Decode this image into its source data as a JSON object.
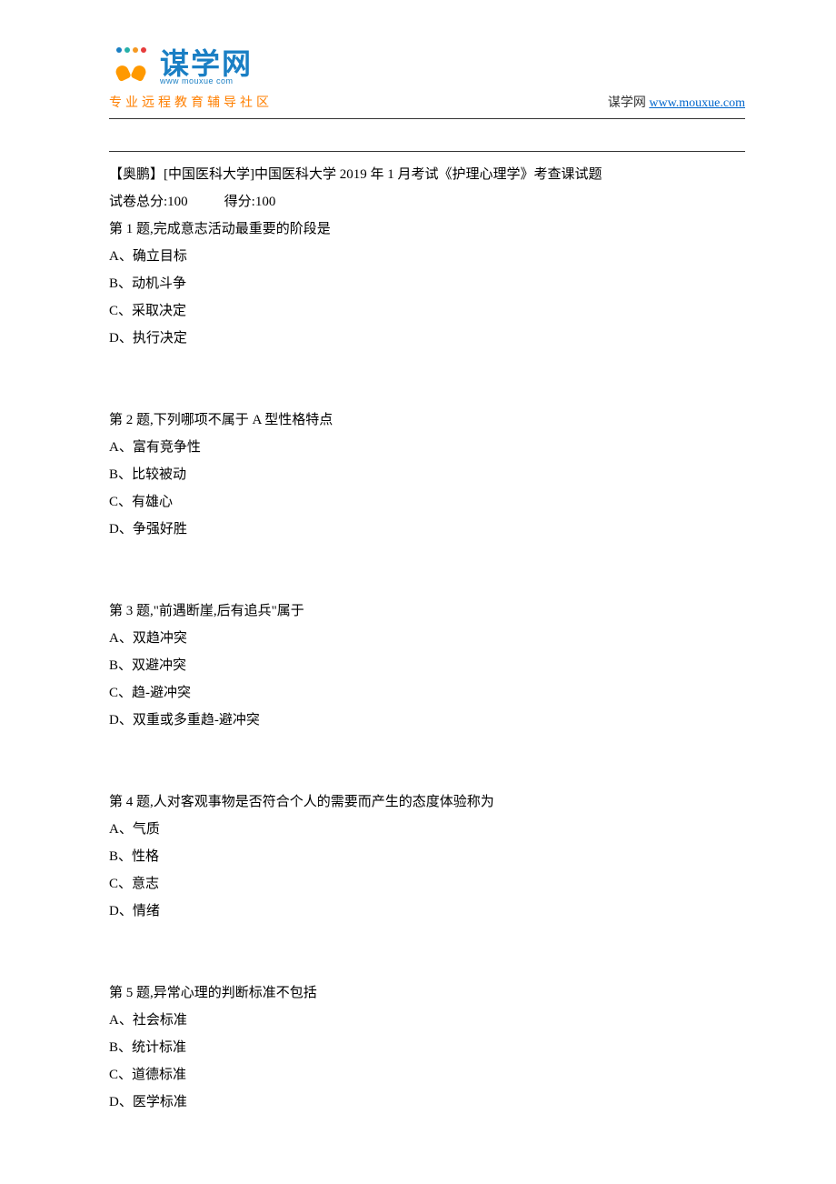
{
  "header": {
    "logo_main": "谋学网",
    "logo_url_small": "www        mouxue        com",
    "logo_subtitle": "专业远程教育辅导社区",
    "site_name": "谋学网",
    "site_url": "www.mouxue.com"
  },
  "exam": {
    "title": "【奥鹏】[中国医科大学]中国医科大学 2019 年 1 月考试《护理心理学》考查课试题",
    "total_label": "试卷总分:100",
    "score_label": "得分:100"
  },
  "questions": [
    {
      "stem": "第 1 题,完成意志活动最重要的阶段是",
      "options": [
        "A、确立目标",
        "B、动机斗争",
        "C、采取决定",
        "D、执行决定"
      ]
    },
    {
      "stem": "第 2 题,下列哪项不属于 A 型性格特点",
      "options": [
        "A、富有竞争性",
        "B、比较被动",
        "C、有雄心",
        "D、争强好胜"
      ]
    },
    {
      "stem": "第 3 题,\"前遇断崖,后有追兵\"属于",
      "options": [
        "A、双趋冲突",
        "B、双避冲突",
        "C、趋-避冲突",
        "D、双重或多重趋-避冲突"
      ]
    },
    {
      "stem": "第 4 题,人对客观事物是否符合个人的需要而产生的态度体验称为",
      "options": [
        "A、气质",
        "B、性格",
        "C、意志",
        "D、情绪"
      ]
    },
    {
      "stem": "第 5 题,异常心理的判断标准不包括",
      "options": [
        "A、社会标准",
        "B、统计标准",
        "C、道德标准",
        "D、医学标准"
      ]
    }
  ]
}
